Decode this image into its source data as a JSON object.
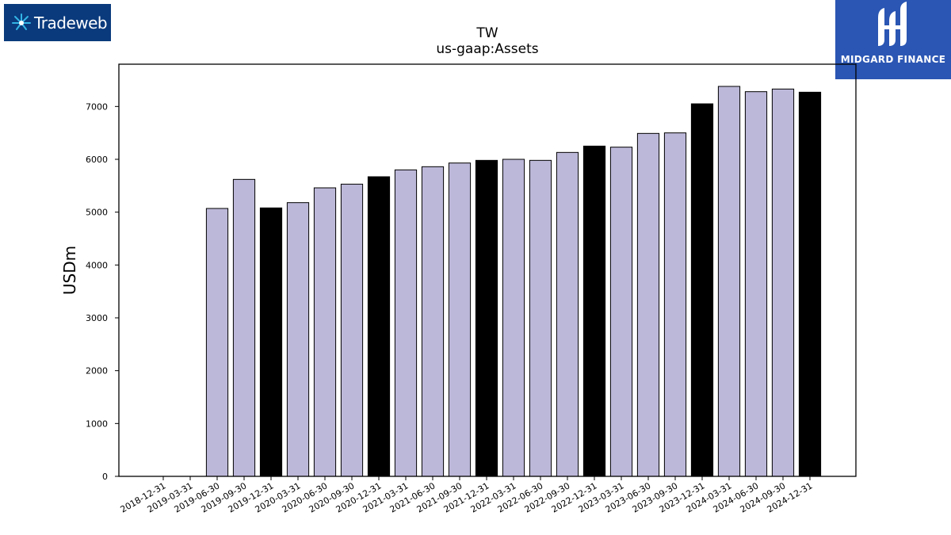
{
  "logos": {
    "left_text": "Tradeweb",
    "right_text": "MIDGARD FINANCE"
  },
  "colors": {
    "bar_default": "#bcb8d9",
    "bar_highlight": "#000000",
    "left_logo_bg": "#0a3a7c",
    "right_logo_bg": "#2b56b3"
  },
  "chart_data": {
    "type": "bar",
    "title": "TW",
    "subtitle": "us-gaap:Assets",
    "ylabel": "USDm",
    "ylim": [
      0,
      7800
    ],
    "yticks": [
      0,
      1000,
      2000,
      3000,
      4000,
      5000,
      6000,
      7000
    ],
    "grid": false,
    "categories": [
      "2018-12-31",
      "2019-03-31",
      "2019-06-30",
      "2019-09-30",
      "2019-12-31",
      "2020-03-31",
      "2020-06-30",
      "2020-09-30",
      "2020-12-31",
      "2021-03-31",
      "2021-06-30",
      "2021-09-30",
      "2021-12-31",
      "2022-03-31",
      "2022-06-30",
      "2022-09-30",
      "2022-12-31",
      "2023-03-31",
      "2023-06-30",
      "2023-09-30",
      "2023-12-31",
      "2024-03-31",
      "2024-06-30",
      "2024-09-30",
      "2024-12-31"
    ],
    "values": [
      null,
      null,
      5070,
      5620,
      5080,
      5180,
      5460,
      5530,
      5670,
      5800,
      5860,
      5930,
      5980,
      6000,
      5980,
      6130,
      6250,
      6230,
      6490,
      6500,
      7050,
      7380,
      7280,
      7330,
      7270
    ],
    "highlight": [
      false,
      false,
      false,
      false,
      true,
      false,
      false,
      false,
      true,
      false,
      false,
      false,
      true,
      false,
      false,
      false,
      true,
      false,
      false,
      false,
      true,
      false,
      false,
      false,
      true
    ]
  }
}
